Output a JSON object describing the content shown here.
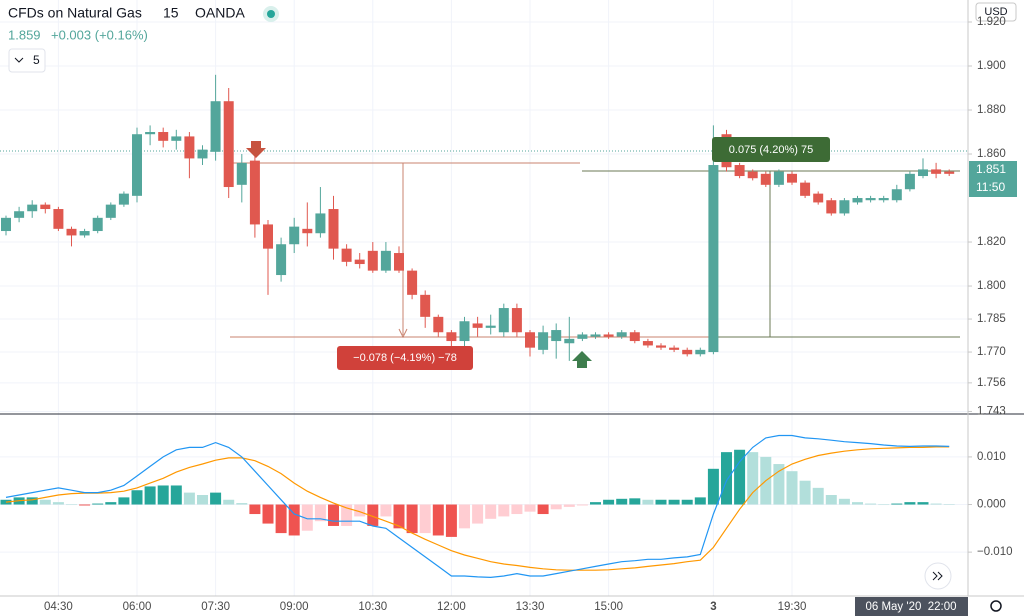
{
  "header": {
    "symbol": "CFDs on Natural Gas",
    "interval": "15",
    "exchange": "OANDA",
    "last": "1.859",
    "change": "+0.003 (+0.16%)",
    "interval_selector": "5",
    "currency": "USD"
  },
  "price_label": 1.851,
  "countdown": "11:50",
  "crosshair_time": "06 May '20  22:00",
  "measure_down": "−0.078 (−4.19%) −78",
  "measure_up": "0.075 (4.20%) 75",
  "chart_data": [
    {
      "type": "candlestick",
      "up_color": "#53a69b",
      "down_color": "#e0584f",
      "grid": true,
      "categories": [
        null,
        null,
        null,
        null,
        "04:30",
        null,
        null,
        null,
        null,
        null,
        "06:00",
        null,
        null,
        null,
        null,
        null,
        "07:30",
        null,
        null,
        null,
        null,
        null,
        "09:00",
        null,
        null,
        null,
        null,
        null,
        "10:30",
        null,
        null,
        null,
        null,
        null,
        "12:00",
        null,
        null,
        null,
        null,
        null,
        "13:30",
        null,
        null,
        null,
        null,
        null,
        "15:00",
        null,
        null,
        null,
        null,
        null,
        null,
        null,
        "3",
        null,
        null,
        null,
        null,
        null,
        "19:30",
        null,
        null,
        null,
        null,
        null,
        null,
        null,
        null,
        null,
        null,
        null,
        null
      ],
      "open": [
        1.825,
        1.831,
        1.834,
        1.837,
        1.835,
        1.826,
        1.823,
        1.825,
        1.831,
        1.837,
        1.841,
        1.869,
        1.87,
        1.866,
        1.868,
        1.858,
        1.861,
        1.884,
        1.846,
        1.857,
        1.828,
        1.805,
        1.819,
        1.826,
        1.824,
        1.835,
        1.817,
        1.812,
        1.816,
        1.807,
        1.815,
        1.807,
        1.796,
        1.786,
        1.779,
        1.775,
        1.783,
        1.781,
        1.779,
        1.79,
        1.779,
        1.771,
        1.775,
        1.774,
        1.776,
        1.777,
        1.778,
        1.777,
        1.779,
        1.775,
        1.773,
        1.772,
        1.771,
        1.769,
        1.77,
        1.869,
        1.855,
        1.852,
        1.851,
        1.846,
        1.851,
        1.847,
        1.842,
        1.839,
        1.833,
        1.838,
        1.839,
        1.839,
        1.839,
        1.844,
        1.85,
        1.853,
        1.852
      ],
      "high": [
        1.832,
        1.836,
        1.839,
        1.838,
        1.836,
        1.827,
        1.826,
        1.832,
        1.838,
        1.843,
        1.872,
        1.873,
        1.872,
        1.871,
        1.87,
        1.864,
        1.896,
        1.89,
        1.86,
        1.86,
        1.83,
        1.822,
        1.831,
        1.838,
        1.845,
        1.841,
        1.819,
        1.815,
        1.82,
        1.82,
        1.818,
        1.808,
        1.798,
        1.787,
        1.78,
        1.786,
        1.786,
        1.787,
        1.792,
        1.792,
        1.78,
        1.782,
        1.783,
        1.786,
        1.779,
        1.779,
        1.779,
        1.78,
        1.78,
        1.776,
        1.774,
        1.773,
        1.772,
        1.772,
        1.873,
        1.871,
        1.856,
        1.853,
        1.852,
        1.853,
        1.852,
        1.848,
        1.843,
        1.84,
        1.84,
        1.841,
        1.841,
        1.841,
        1.846,
        1.852,
        1.858,
        1.856,
        1.853
      ],
      "low": [
        1.823,
        1.829,
        1.831,
        1.833,
        1.825,
        1.818,
        1.822,
        1.824,
        1.83,
        1.836,
        1.838,
        1.864,
        1.863,
        1.862,
        1.849,
        1.855,
        1.857,
        1.84,
        1.838,
        1.822,
        1.796,
        1.802,
        1.815,
        1.818,
        1.822,
        1.812,
        1.809,
        1.808,
        1.806,
        1.806,
        1.806,
        1.794,
        1.781,
        1.777,
        1.77,
        1.772,
        1.777,
        1.778,
        1.777,
        1.777,
        1.768,
        1.769,
        1.767,
        1.766,
        1.775,
        1.776,
        1.776,
        1.776,
        1.774,
        1.772,
        1.771,
        1.77,
        1.768,
        1.768,
        1.769,
        1.852,
        1.849,
        1.848,
        1.845,
        1.845,
        1.846,
        1.84,
        1.837,
        1.832,
        1.832,
        1.837,
        1.838,
        1.838,
        1.838,
        1.843,
        1.849,
        1.849,
        1.85
      ],
      "close": [
        1.831,
        1.834,
        1.837,
        1.835,
        1.826,
        1.823,
        1.825,
        1.831,
        1.837,
        1.842,
        1.869,
        1.87,
        1.866,
        1.868,
        1.858,
        1.862,
        1.884,
        1.845,
        1.856,
        1.828,
        1.817,
        1.819,
        1.827,
        1.824,
        1.833,
        1.817,
        1.811,
        1.81,
        1.807,
        1.816,
        1.807,
        1.796,
        1.786,
        1.779,
        1.775,
        1.784,
        1.781,
        1.782,
        1.79,
        1.779,
        1.772,
        1.779,
        1.78,
        1.776,
        1.778,
        1.778,
        1.777,
        1.779,
        1.775,
        1.773,
        1.772,
        1.771,
        1.769,
        1.771,
        1.855,
        1.854,
        1.85,
        1.849,
        1.846,
        1.852,
        1.847,
        1.841,
        1.838,
        1.833,
        1.839,
        1.84,
        1.84,
        1.84,
        1.844,
        1.851,
        1.853,
        1.851,
        1.851
      ],
      "ylim": [
        1.7423,
        1.93
      ],
      "yticks": [
        {
          "value": 1.92,
          "label": "1.920"
        },
        {
          "value": 1.9,
          "label": "1.900"
        },
        {
          "value": 1.88,
          "label": "1.880"
        },
        {
          "value": 1.86,
          "label": "1.860"
        },
        {
          "value": 1.82,
          "label": "1.820"
        },
        {
          "value": 1.8,
          "label": "1.800"
        },
        1.785,
        {
          "value": 1.77,
          "label": "1.770"
        },
        1.756,
        1.743
      ]
    },
    {
      "type": "macd",
      "grid": true,
      "hist_colors": [
        "#26a69a",
        "#b2dfdb",
        "#ef5350",
        "#ffcdd2"
      ],
      "macd_color": "#2196f3",
      "signal_color": "#ff9800",
      "histogram": [
        0.001,
        0.0015,
        0.0015,
        0.001,
        0.0005,
        0,
        -0.0002,
        0.0002,
        0.0005,
        0.0015,
        0.003,
        0.0038,
        0.004,
        0.004,
        0.0025,
        0.002,
        0.0025,
        0.001,
        0.0003,
        -0.002,
        -0.004,
        -0.006,
        -0.0065,
        -0.0055,
        -0.0035,
        -0.0045,
        -0.0045,
        -0.0025,
        -0.0045,
        -0.0025,
        -0.005,
        -0.006,
        -0.006,
        -0.0065,
        -0.0068,
        -0.005,
        -0.004,
        -0.003,
        -0.0025,
        -0.002,
        -0.0015,
        -0.002,
        -0.001,
        -0.0005,
        -0.0002,
        0.0005,
        0.001,
        0.0012,
        0.0013,
        0.001,
        0.001,
        0.001,
        0.001,
        0.0015,
        0.0075,
        0.011,
        0.0115,
        0.011,
        0.01,
        0.0085,
        0.007,
        0.005,
        0.0035,
        0.002,
        0.0012,
        0.0005,
        0.0002,
        0,
        0.0002,
        0.0005,
        0.0005,
        0.0002,
        0.0001
      ],
      "macd": [
        0.0015,
        0.002,
        0.0025,
        0.003,
        0.0035,
        0.003,
        0.0025,
        0.0025,
        0.003,
        0.004,
        0.006,
        0.008,
        0.01,
        0.0115,
        0.012,
        0.012,
        0.013,
        0.012,
        0.01,
        0.007,
        0.004,
        0.001,
        -0.002,
        -0.003,
        -0.003,
        -0.0035,
        -0.0035,
        -0.0035,
        -0.0045,
        -0.005,
        -0.007,
        -0.009,
        -0.011,
        -0.013,
        -0.015,
        -0.015,
        -0.0152,
        -0.0153,
        -0.015,
        -0.0145,
        -0.015,
        -0.015,
        -0.0145,
        -0.014,
        -0.0135,
        -0.013,
        -0.0125,
        -0.012,
        -0.0118,
        -0.0115,
        -0.0115,
        -0.0112,
        -0.011,
        -0.0105,
        -0.002,
        0.005,
        0.009,
        0.012,
        0.014,
        0.0145,
        0.0145,
        0.014,
        0.0138,
        0.0135,
        0.0132,
        0.013,
        0.0128,
        0.0125,
        0.0123,
        0.0122,
        0.0123,
        0.0123,
        0.0122
      ],
      "signal": [
        0.0005,
        0.0008,
        0.001,
        0.0015,
        0.002,
        0.0023,
        0.0024,
        0.0024,
        0.0025,
        0.0028,
        0.0035,
        0.0045,
        0.0055,
        0.0068,
        0.0078,
        0.0085,
        0.0093,
        0.0098,
        0.0098,
        0.0092,
        0.008,
        0.0065,
        0.0045,
        0.0028,
        0.0015,
        0.0003,
        -0.0007,
        -0.0015,
        -0.0025,
        -0.0035,
        -0.0045,
        -0.006,
        -0.0073,
        -0.0085,
        -0.0097,
        -0.0106,
        -0.0113,
        -0.012,
        -0.0125,
        -0.0128,
        -0.0132,
        -0.0135,
        -0.0137,
        -0.0138,
        -0.0138,
        -0.0138,
        -0.0137,
        -0.0135,
        -0.0133,
        -0.013,
        -0.0127,
        -0.0124,
        -0.012,
        -0.0117,
        -0.009,
        -0.005,
        -0.001,
        0.0025,
        0.005,
        0.007,
        0.0085,
        0.0095,
        0.0103,
        0.0108,
        0.0112,
        0.0115,
        0.0117,
        0.0118,
        0.0119,
        0.012,
        0.012,
        0.0121,
        0.0121
      ],
      "ylim": [
        -0.019,
        0.0188
      ],
      "yticks": [
        {
          "value": 0.01,
          "label": "0.010"
        },
        {
          "value": 0,
          "label": "0.000"
        },
        {
          "value": -0.01,
          "label": "−0.010"
        }
      ]
    }
  ]
}
